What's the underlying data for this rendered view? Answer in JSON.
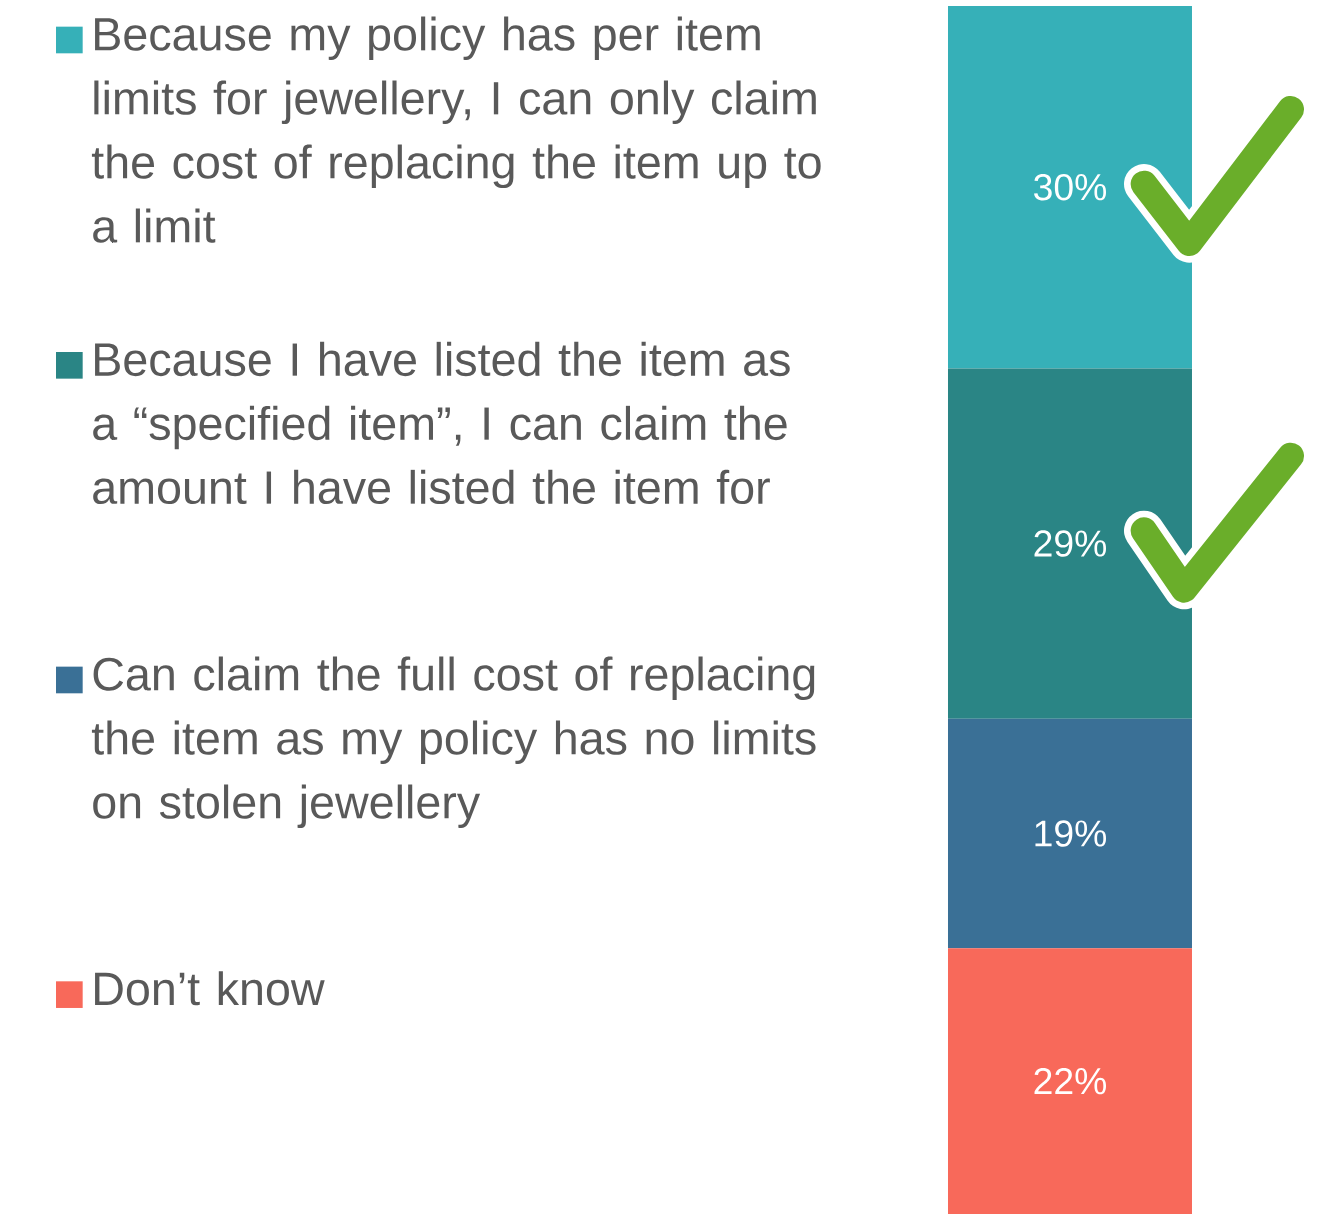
{
  "chart_data": {
    "type": "bar",
    "stacked": true,
    "categories": [
      null
    ],
    "legend": "left",
    "series": [
      {
        "name": "Don’t know",
        "color": "#f8695a",
        "values": [
          22
        ],
        "value_labels": [
          "22%"
        ]
      },
      {
        "name": "Can claim the full cost of replacing the item as my policy has no limits on stolen jewellery",
        "color": "#3a7096",
        "values": [
          19
        ],
        "value_labels": [
          "19%"
        ]
      },
      {
        "name": "Because I have listed the item as a “specified item”, I can claim the amount I have listed the item for",
        "color": "#2a8585",
        "values": [
          29
        ],
        "value_labels": [
          "29%"
        ]
      },
      {
        "name": "Because my policy has per item limits for jewellery, I can only claim the cost of replacing the item up to a limit",
        "color": "#36b0b8",
        "values": [
          30
        ],
        "value_labels": [
          "30%"
        ]
      }
    ]
  }
}
